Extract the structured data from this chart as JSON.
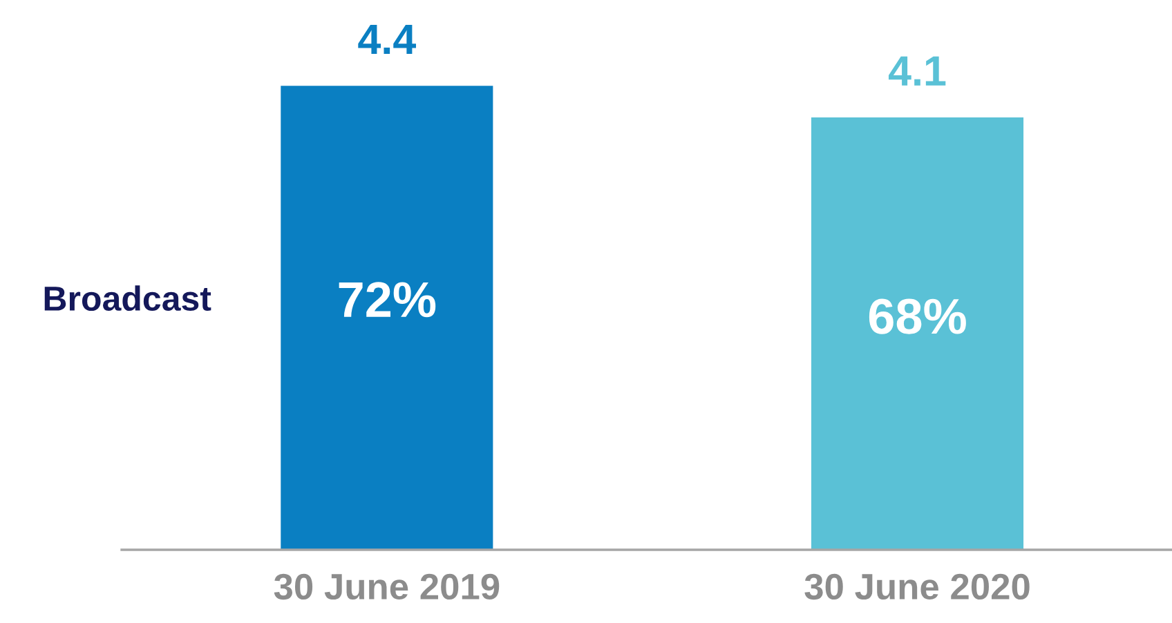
{
  "chart_data": {
    "type": "bar",
    "categories": [
      "30 June 2019",
      "30 June 2020"
    ],
    "values": [
      4.4,
      4.1
    ],
    "colors": [
      "#0a7fc2",
      "#5ac1d6"
    ],
    "data_labels": true,
    "grid": false,
    "legend": false,
    "tick_labels": "x",
    "annotations": [
      "Broadcast",
      "72%",
      "68%"
    ]
  }
}
